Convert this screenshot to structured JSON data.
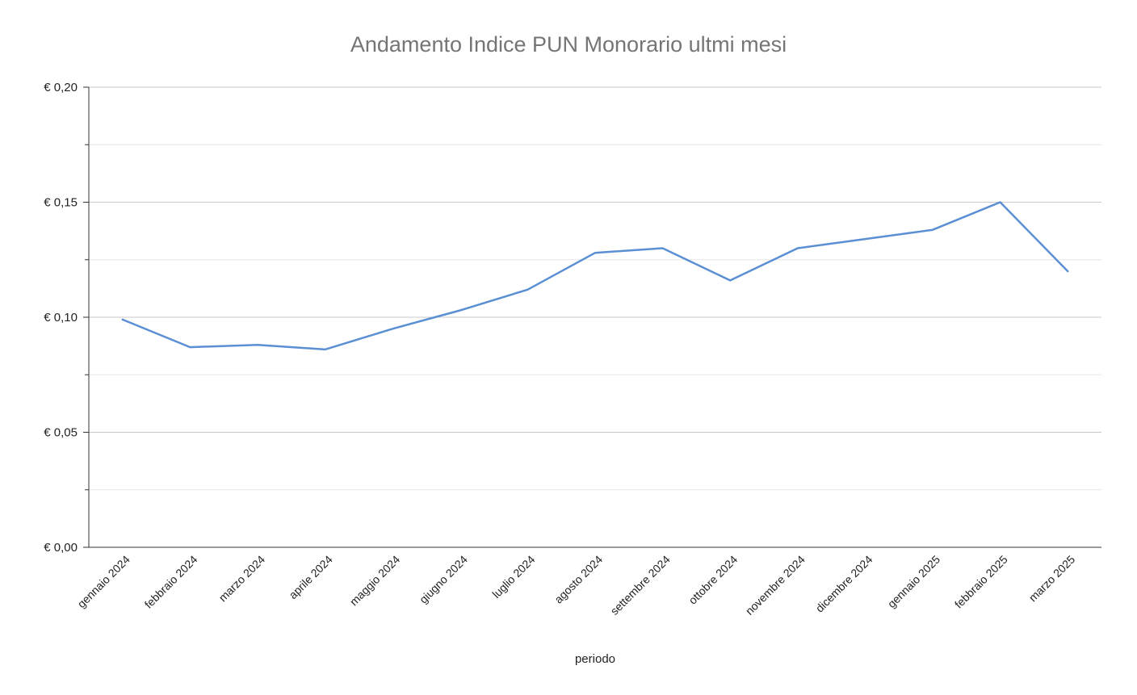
{
  "chart_data": {
    "type": "line",
    "title": "Andamento Indice PUN Monorario ultmi mesi",
    "xlabel": "periodo",
    "ylabel": "",
    "categories": [
      "gennaio 2024",
      "febbraio 2024",
      "marzo 2024",
      "aprile 2024",
      "maggio 2024",
      "giugno 2024",
      "luglio 2024",
      "agosto 2024",
      "settembre 2024",
      "ottobre 2024",
      "novembre 2024",
      "dicembre 2024",
      "gennaio 2025",
      "febbraio 2025",
      "marzo 2025"
    ],
    "series": [
      {
        "values": [
          0.099,
          0.087,
          0.088,
          0.086,
          0.095,
          0.103,
          0.112,
          0.128,
          0.13,
          0.116,
          0.13,
          0.134,
          0.138,
          0.15,
          0.12
        ]
      }
    ],
    "ylim": [
      0,
      0.2
    ],
    "y_major_ticks": [
      0,
      0.05,
      0.1,
      0.15,
      0.2
    ],
    "y_minor_ticks": [
      0.025,
      0.075,
      0.125,
      0.175
    ],
    "y_tick_labels": [
      "€ 0,00",
      "€ 0,05",
      "€ 0,10",
      "€ 0,15",
      "€ 0,20"
    ],
    "grid": true,
    "legend": "none",
    "colors": {
      "line": "#5b8fd4",
      "grid_major": "#c8c8c8",
      "grid_minor": "#e6e6e6",
      "axis": "#333333",
      "title": "#757575"
    }
  }
}
